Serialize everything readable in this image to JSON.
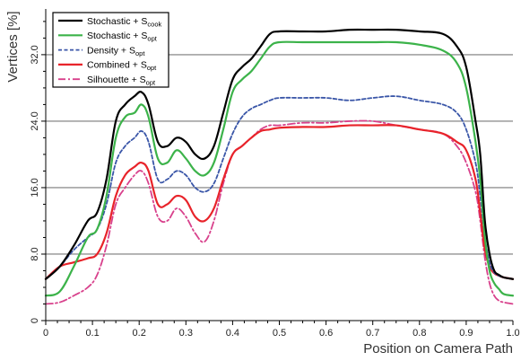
{
  "chart_data": {
    "type": "line",
    "xlabel": "Position on Camera Path",
    "ylabel": "Vertices [%]",
    "xlim": [
      0,
      1.0
    ],
    "ylim": [
      0,
      37.5
    ],
    "xticks": [
      "0",
      "0.1",
      "0.2",
      "0.3",
      "0.4",
      "0.5",
      "0.6",
      "0.7",
      "0.8",
      "0.9",
      "1.0"
    ],
    "yticks": [
      "0",
      "8.0",
      "16.0",
      "24.0",
      "32.0"
    ],
    "grid": "horizontal at 8, 16, 24, 32",
    "legend_position": "top-left",
    "series": [
      {
        "legend_text": "Stochastic + S",
        "legend_sub": "cook",
        "color": "#000000",
        "style": "solid",
        "x": [
          0,
          0.03,
          0.06,
          0.09,
          0.11,
          0.13,
          0.15,
          0.17,
          0.19,
          0.205,
          0.22,
          0.24,
          0.26,
          0.28,
          0.3,
          0.32,
          0.34,
          0.36,
          0.38,
          0.4,
          0.42,
          0.44,
          0.46,
          0.48,
          0.5,
          0.55,
          0.6,
          0.65,
          0.7,
          0.75,
          0.8,
          0.85,
          0.88,
          0.9,
          0.92,
          0.93,
          0.94,
          0.95,
          0.96,
          0.97,
          0.98,
          1.0
        ],
        "y": [
          5,
          6.5,
          9,
          12,
          13,
          17,
          24,
          26,
          27,
          27.5,
          26,
          21.5,
          21,
          22,
          21.5,
          20,
          19.5,
          21,
          25,
          29,
          30.5,
          31.5,
          33,
          34.5,
          34.8,
          34.8,
          34.8,
          35,
          35,
          35,
          34.8,
          34.5,
          33,
          30.5,
          24,
          20,
          12,
          8,
          6,
          5.5,
          5.2,
          5
        ]
      },
      {
        "legend_text": "Stochastic + S",
        "legend_sub": "opt",
        "color": "#3cb34a",
        "style": "solid",
        "x": [
          0,
          0.03,
          0.06,
          0.09,
          0.11,
          0.13,
          0.15,
          0.17,
          0.19,
          0.205,
          0.22,
          0.24,
          0.26,
          0.28,
          0.3,
          0.32,
          0.34,
          0.36,
          0.38,
          0.4,
          0.42,
          0.44,
          0.46,
          0.48,
          0.5,
          0.55,
          0.6,
          0.65,
          0.7,
          0.75,
          0.8,
          0.85,
          0.88,
          0.9,
          0.92,
          0.93,
          0.94,
          0.95,
          0.96,
          0.97,
          0.98,
          1.0
        ],
        "y": [
          3,
          3.5,
          6.5,
          10,
          11,
          15,
          22,
          24.5,
          25,
          26,
          24.5,
          19.5,
          19,
          20.5,
          19.5,
          18,
          17.5,
          19,
          23,
          27.5,
          29,
          30,
          31.5,
          33,
          33.5,
          33.5,
          33.5,
          33.5,
          33.5,
          33.5,
          33.2,
          32.5,
          31,
          28,
          21.5,
          17,
          10,
          6,
          4.5,
          3.8,
          3.2,
          3
        ]
      },
      {
        "legend_text": "Density     + S",
        "legend_sub": "opt",
        "color": "#3a56a8",
        "style": "dashed",
        "x": [
          0,
          0.03,
          0.06,
          0.09,
          0.11,
          0.13,
          0.15,
          0.17,
          0.19,
          0.205,
          0.22,
          0.24,
          0.26,
          0.28,
          0.3,
          0.32,
          0.34,
          0.36,
          0.38,
          0.4,
          0.42,
          0.44,
          0.46,
          0.48,
          0.5,
          0.55,
          0.6,
          0.65,
          0.7,
          0.75,
          0.8,
          0.85,
          0.88,
          0.9,
          0.92,
          0.93,
          0.94,
          0.95,
          0.96,
          0.97,
          0.98,
          1.0
        ],
        "y": [
          5,
          6.5,
          8.5,
          10,
          11,
          14,
          19,
          21,
          22,
          22.8,
          21.5,
          17,
          17,
          18,
          17.5,
          16,
          15.5,
          16.5,
          19.5,
          22.5,
          24.5,
          25.5,
          26,
          26.5,
          26.8,
          26.8,
          26.8,
          26.5,
          26.8,
          27,
          26.5,
          26,
          25,
          23,
          19,
          15,
          10,
          7,
          5.8,
          5.4,
          5.2,
          5
        ]
      },
      {
        "legend_text": "Combined + S",
        "legend_sub": "opt",
        "color": "#e8232a",
        "style": "solid",
        "x": [
          0,
          0.03,
          0.06,
          0.09,
          0.11,
          0.13,
          0.15,
          0.17,
          0.19,
          0.205,
          0.22,
          0.24,
          0.26,
          0.28,
          0.3,
          0.32,
          0.34,
          0.36,
          0.38,
          0.4,
          0.42,
          0.44,
          0.46,
          0.48,
          0.5,
          0.55,
          0.6,
          0.65,
          0.7,
          0.75,
          0.8,
          0.85,
          0.88,
          0.9,
          0.92,
          0.93,
          0.94,
          0.95,
          0.96,
          0.97,
          0.98,
          1.0
        ],
        "y": [
          5,
          6.5,
          7,
          7.5,
          8,
          10.5,
          15,
          17.5,
          18.5,
          19,
          18,
          14,
          14,
          15,
          14.5,
          12.5,
          12,
          13.5,
          17,
          20,
          21,
          22,
          22.8,
          23,
          23.2,
          23.3,
          23.3,
          23.5,
          23.5,
          23.5,
          23,
          22.5,
          21.5,
          20.5,
          17,
          13,
          8.5,
          6.5,
          5.7,
          5.4,
          5.2,
          5
        ]
      },
      {
        "legend_text": "Silhouette + S",
        "legend_sub": "opt",
        "color": "#d8418c",
        "style": "dashdot",
        "x": [
          0,
          0.03,
          0.06,
          0.09,
          0.11,
          0.13,
          0.15,
          0.17,
          0.19,
          0.205,
          0.22,
          0.24,
          0.26,
          0.28,
          0.3,
          0.32,
          0.34,
          0.36,
          0.38,
          0.4,
          0.42,
          0.44,
          0.46,
          0.48,
          0.5,
          0.55,
          0.6,
          0.65,
          0.7,
          0.75,
          0.8,
          0.85,
          0.88,
          0.9,
          0.92,
          0.93,
          0.94,
          0.95,
          0.96,
          0.97,
          0.98,
          1.0
        ],
        "y": [
          2,
          2.2,
          3,
          4,
          5.5,
          9,
          14,
          16,
          17.5,
          18,
          16.5,
          12.5,
          12,
          13.5,
          12.5,
          10.5,
          9.5,
          12,
          16.5,
          20,
          21,
          22,
          23,
          23.5,
          23.5,
          23.8,
          23.8,
          24,
          24,
          23.5,
          23,
          22.5,
          21,
          19,
          15.5,
          12,
          7.5,
          4.5,
          3,
          2.4,
          2.2,
          2
        ]
      }
    ]
  }
}
